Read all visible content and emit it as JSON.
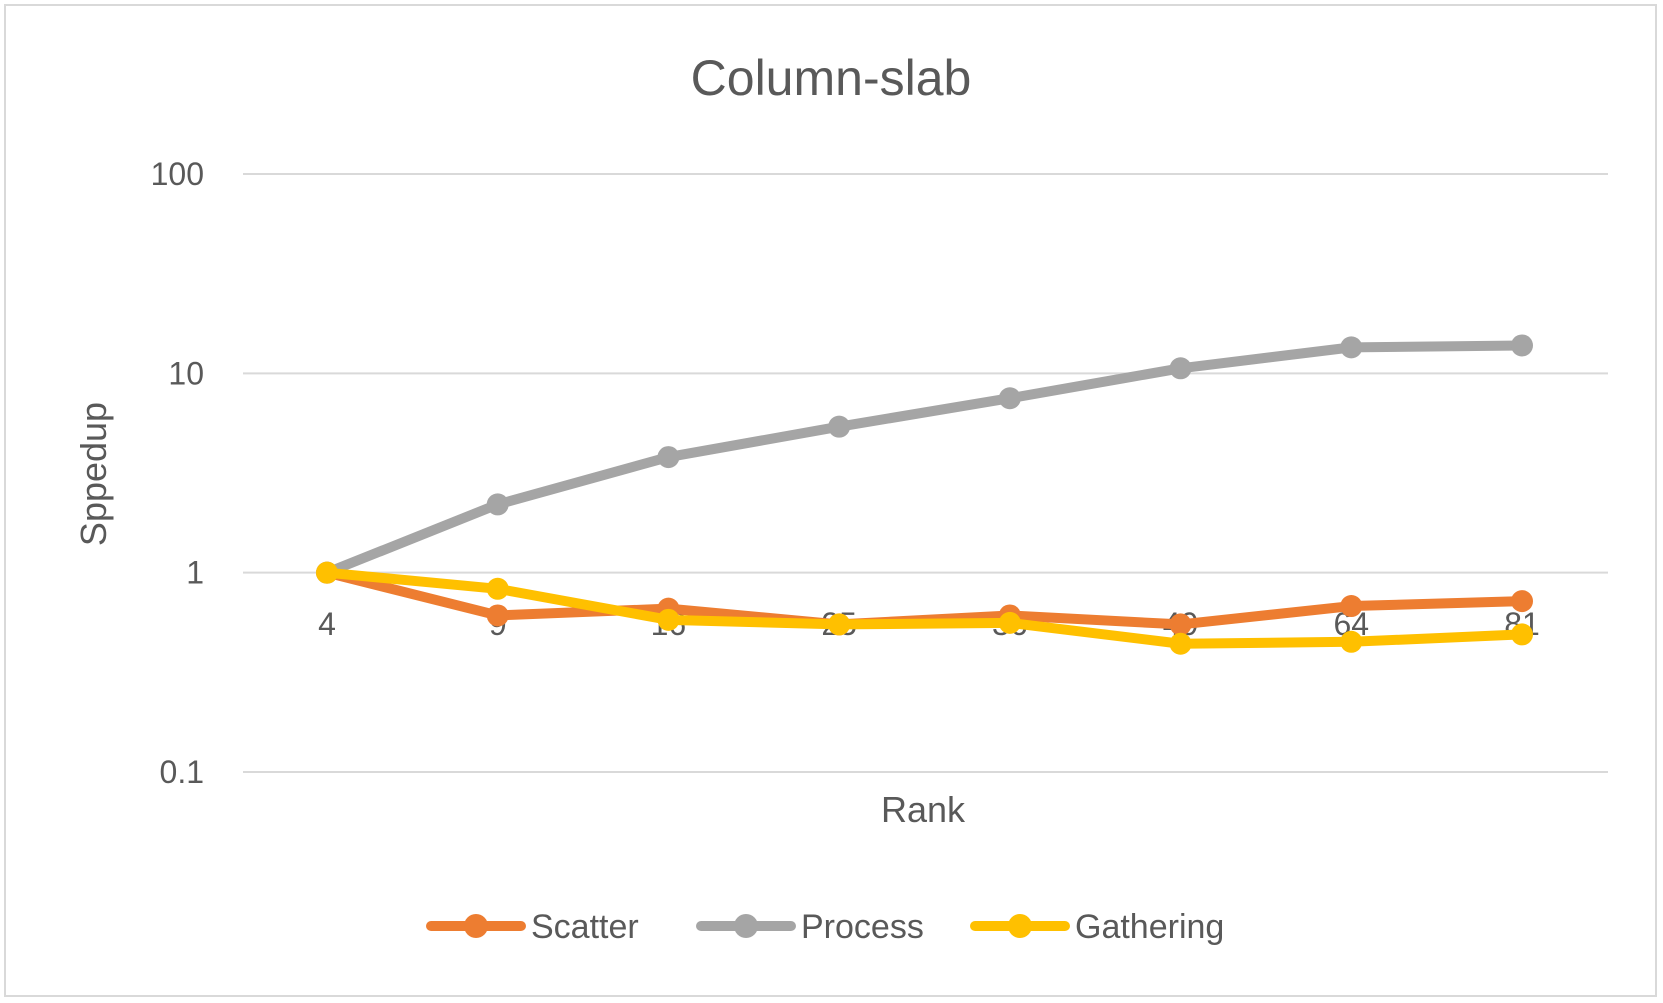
{
  "chart_data": {
    "type": "line",
    "title": "Column-slab",
    "xlabel": "Rank",
    "ylabel": "Sppedup",
    "y_scale": "log",
    "ylim": [
      0.1,
      100
    ],
    "y_ticks": [
      "0.1",
      "1",
      "10",
      "100"
    ],
    "categories": [
      "4",
      "9",
      "16",
      "25",
      "36",
      "49",
      "64",
      "81"
    ],
    "grid": "horizontal",
    "legend_position": "bottom",
    "series": [
      {
        "name": "Scatter",
        "color": "#ED7D31",
        "values": [
          1.0,
          0.61,
          0.66,
          0.55,
          0.61,
          0.55,
          0.68,
          0.72
        ]
      },
      {
        "name": "Process",
        "color": "#A5A5A5",
        "values": [
          1.0,
          2.2,
          3.8,
          5.4,
          7.5,
          10.6,
          13.5,
          13.8
        ]
      },
      {
        "name": "Gathering",
        "color": "#FFC000",
        "values": [
          1.0,
          0.83,
          0.58,
          0.55,
          0.56,
          0.44,
          0.45,
          0.49
        ]
      }
    ]
  }
}
